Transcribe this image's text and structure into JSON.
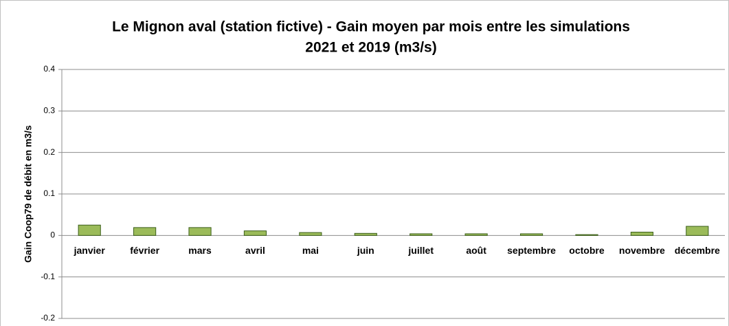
{
  "chart_data": {
    "type": "bar",
    "title": [
      "Le Mignon aval (station fictive) - Gain moyen par mois entre les simulations",
      "2021 et 2019 (m3/s)"
    ],
    "y_label": "Gain Coop79 de débit en m3/s",
    "categories": [
      "janvier",
      "février",
      "mars",
      "avril",
      "mai",
      "juin",
      "juillet",
      "août",
      "septembre",
      "octobre",
      "novembre",
      "décembre"
    ],
    "values": [
      0.025,
      0.019,
      0.019,
      0.011,
      0.007,
      0.005,
      0.004,
      0.004,
      0.004,
      0.002,
      0.008,
      0.022
    ],
    "color": "#9bbb59",
    "ylim": [
      -0.2,
      0.4
    ],
    "yticks": [
      -0.2,
      -0.1,
      0,
      0.1,
      0.2,
      0.3,
      0.4
    ],
    "grid": true
  }
}
